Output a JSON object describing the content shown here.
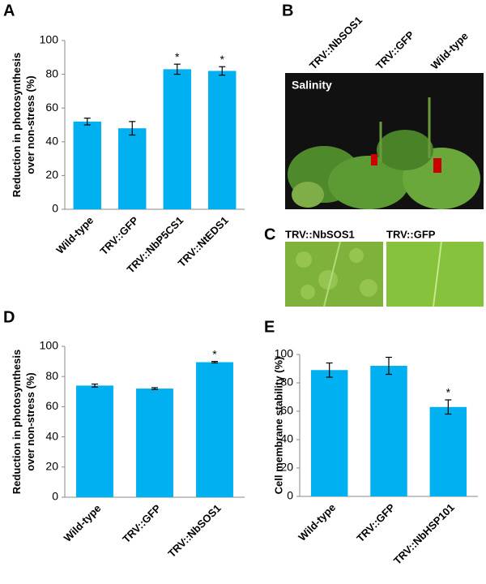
{
  "chart_data": [
    {
      "type": "bar",
      "panel": "A",
      "y_label": [
        "Reduction in photosynthesis",
        "over non-stress (%)"
      ],
      "categories": [
        "Wild-type",
        "TRV::GFP",
        "TRV::NbP5CS1",
        "TRV::NtEDS1"
      ],
      "values": [
        52,
        48,
        83,
        82
      ],
      "errors": [
        2,
        4,
        3,
        2.5
      ],
      "significance": [
        null,
        null,
        "*",
        "*"
      ],
      "color": "#00b0f0",
      "ylim": [
        0,
        100
      ],
      "yticks": [
        0,
        20,
        40,
        60,
        80,
        100
      ]
    },
    {
      "type": "bar",
      "panel": "D",
      "y_label": [
        "Reduction in photosynthesis",
        "over non-stress (%)"
      ],
      "categories": [
        "Wild-type",
        "TRV::GFP",
        "TRV::NbSOS1"
      ],
      "values": [
        74,
        72,
        89.5
      ],
      "errors": [
        1,
        0.6,
        0.5
      ],
      "significance": [
        null,
        null,
        "*"
      ],
      "color": "#00b0f0",
      "ylim": [
        0,
        100
      ],
      "yticks": [
        0,
        20,
        40,
        60,
        80,
        100
      ]
    },
    {
      "type": "bar",
      "panel": "E",
      "y_label": [
        "Cell membrane stability (%)"
      ],
      "categories": [
        "Wild-type",
        "TRV::GFP",
        "TRV::NbHSP101"
      ],
      "values": [
        89,
        92,
        63
      ],
      "errors": [
        5,
        6,
        5
      ],
      "significance": [
        null,
        null,
        "*"
      ],
      "color": "#00b0f0",
      "ylim": [
        0,
        100
      ],
      "yticks": [
        0,
        20,
        40,
        60,
        80,
        100
      ]
    }
  ],
  "photo_b": {
    "panel": "B",
    "columns": [
      "TRV::NbSOS1",
      "TRV::GFP",
      "Wild-type"
    ],
    "label": "Salinity"
  },
  "photo_c": {
    "panel": "C",
    "left": "TRV::NbSOS1",
    "right": "TRV::GFP"
  }
}
